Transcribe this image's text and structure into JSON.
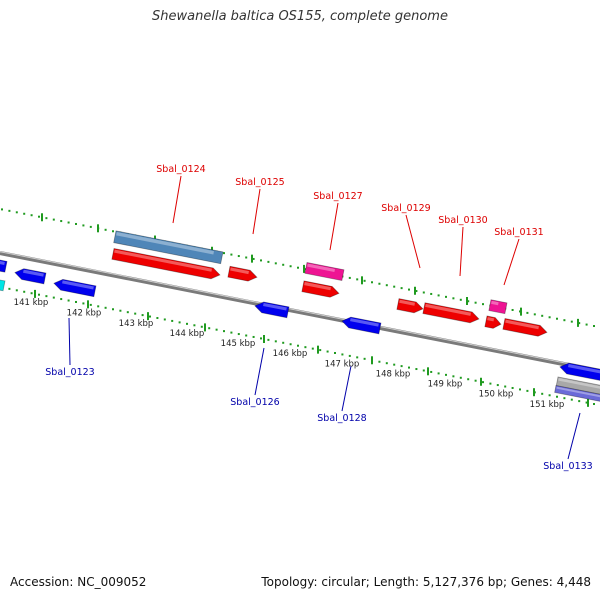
{
  "title": "Shewanella baltica OS155, complete genome",
  "footer": {
    "accession": "Accession: NC_009052",
    "summary": "Topology: circular; Length: 5,127,376 bp; Genes: 4,448"
  },
  "colors": {
    "backbone": "#7a7a7a",
    "backbone_highlight": "#cfcfcf",
    "tick_green": "#1f9a1f",
    "scale_text": "#222222",
    "label_top": "#dd0000",
    "label_bottom": "#0000aa",
    "gene_red": "#ee0000",
    "gene_blue": "#0000ee",
    "gene_magenta": "#ee1493",
    "gene_cyan": "#00e5e5",
    "gene_steel": "#4f86b8",
    "gene_gray": "#a8a8a8",
    "gene_slate": "#6a6ad8"
  },
  "scale_labels": [
    "141 kbp",
    "142 kbp",
    "143 kbp",
    "144 kbp",
    "145 kbp",
    "146 kbp",
    "147 kbp",
    "148 kbp",
    "149 kbp",
    "150 kbp",
    "151 kbp"
  ],
  "gene_labels": [
    {
      "text": "Sbal_0123",
      "strand": "bottom"
    },
    {
      "text": "Sbal_0124",
      "strand": "top"
    },
    {
      "text": "Sbal_0125",
      "strand": "top"
    },
    {
      "text": "Sbal_0126",
      "strand": "bottom"
    },
    {
      "text": "Sbal_0127",
      "strand": "top"
    },
    {
      "text": "Sbal_0128",
      "strand": "bottom"
    },
    {
      "text": "Sbal_0129",
      "strand": "top"
    },
    {
      "text": "Sbal_0130",
      "strand": "top"
    },
    {
      "text": "Sbal_0131",
      "strand": "top"
    },
    {
      "text": "Sbal_0133",
      "strand": "bottom"
    }
  ]
}
